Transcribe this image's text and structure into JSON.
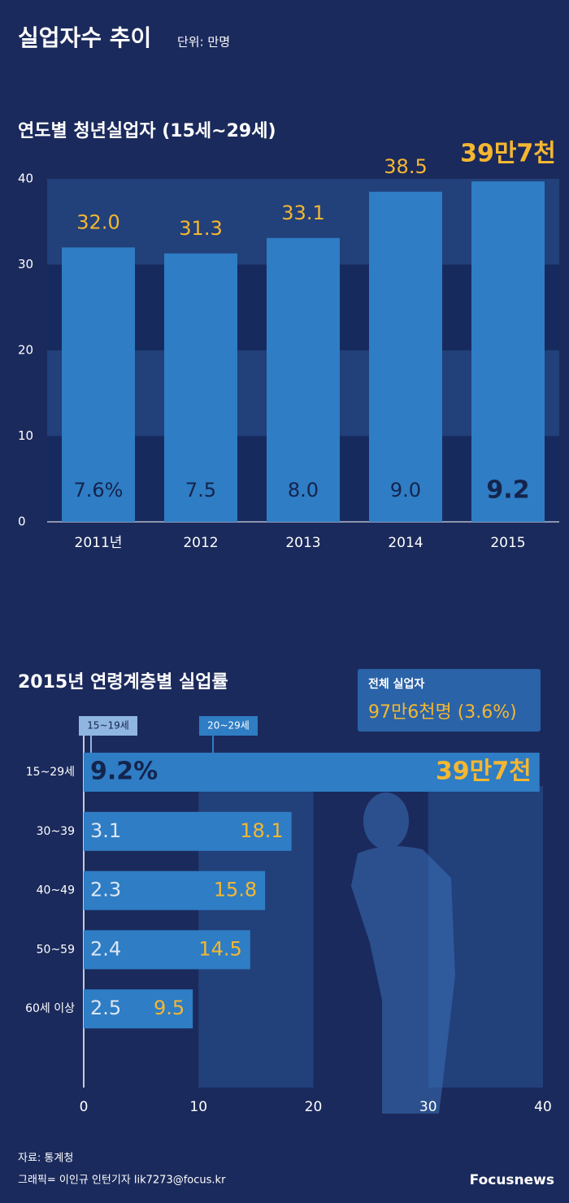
{
  "header": {
    "title": "실업자수 추이",
    "unit": "단위: 만명"
  },
  "chart_data": [
    {
      "type": "bar",
      "title": "연도별 청년실업자 (15세~29세)",
      "categories": [
        "2011년",
        "2012",
        "2013",
        "2014",
        "2015"
      ],
      "values": [
        32.0,
        31.3,
        33.1,
        38.5,
        39.7
      ],
      "value_labels": [
        "32.0",
        "31.3",
        "33.1",
        "38.5",
        "39만7천"
      ],
      "rates": [
        7.6,
        7.5,
        8.0,
        9.0,
        9.2
      ],
      "rate_labels": [
        "7.6%",
        "7.5",
        "8.0",
        "9.0",
        "9.2"
      ],
      "color": "#2f7dc4",
      "ylim": [
        0,
        40
      ],
      "yticks": [
        0,
        10,
        20,
        30,
        40
      ],
      "grid": true
    },
    {
      "type": "bar",
      "horizontal": true,
      "title": "2015년 연령계층별 실업률",
      "categories": [
        "15~29세",
        "30~39",
        "40~49",
        "50~59",
        "60세 이상"
      ],
      "values": [
        39.7,
        18.1,
        15.8,
        14.5,
        9.5
      ],
      "value_labels": [
        "39만7천",
        "18.1",
        "15.8",
        "14.5",
        "9.5"
      ],
      "rates": [
        9.2,
        3.1,
        2.3,
        2.4,
        2.5
      ],
      "rate_labels": [
        "9.2%",
        "3.1",
        "2.3",
        "2.4",
        "2.5"
      ],
      "annotations": [
        "15~19세",
        "20~29세"
      ],
      "color": "#2f7dc4",
      "xlim": [
        0,
        40
      ],
      "xticks": [
        0,
        10,
        20,
        30,
        40
      ],
      "grid": true
    }
  ],
  "total_box": {
    "title": "전체 실업자",
    "value": "97만6천명 (3.6%)"
  },
  "footer": {
    "source": "자료: 통계청",
    "credit": "그래픽= 이인규 인턴기자 lik7273@focus.kr",
    "logo": "Focusnews"
  }
}
